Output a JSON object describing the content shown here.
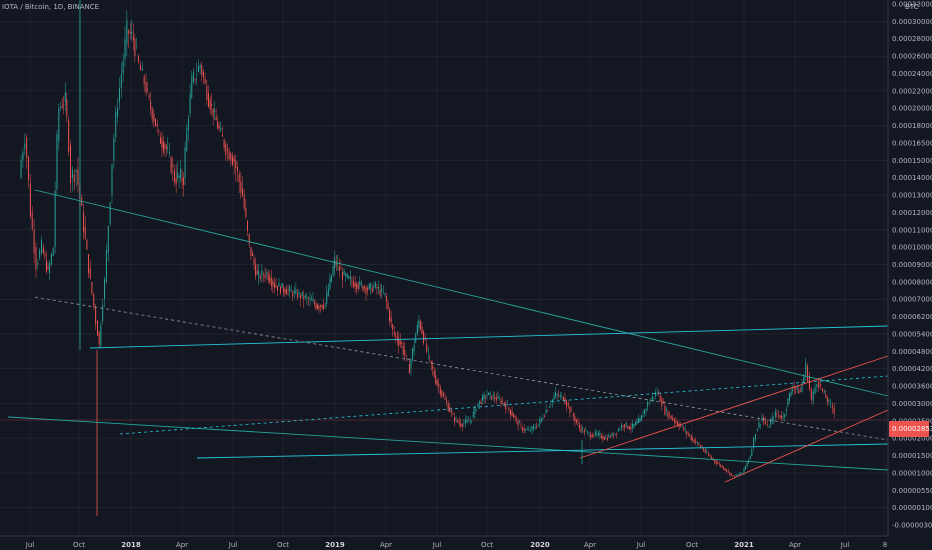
{
  "chart_data": {
    "type": "candlestick",
    "title": "IOTA / Bitcoin, 1D, BINANCE",
    "currency": "BTC",
    "last_price": "0.00002853",
    "y_axis_ticks": [
      "0.00032000",
      "0.00030000",
      "0.00028000",
      "0.00026000",
      "0.00024000",
      "0.00022000",
      "0.00020000",
      "0.00018000",
      "0.00016500",
      "0.00015000",
      "0.00014000",
      "0.00013000",
      "0.00012000",
      "0.00011000",
      "0.00010000",
      "0.00009000",
      "0.00008000",
      "0.00007000",
      "0.00006200",
      "0.00005400",
      "0.00004800",
      "0.00004200",
      "0.00003600",
      "0.00003000",
      "0.00002500",
      "0.00002000",
      "0.00001500",
      "0.00001000",
      "0.00000550",
      "0.00000100",
      "-0.00000300"
    ],
    "x_axis_ticks": [
      "Jul",
      "Oct",
      "2018",
      "Apr",
      "Jul",
      "Oct",
      "2019",
      "Apr",
      "Jul",
      "Oct",
      "2020",
      "Apr",
      "Jul",
      "Oct",
      "2021",
      "Apr",
      "Jul",
      "8"
    ],
    "price_series": [
      [
        "2017-06-15",
        0.00014
      ],
      [
        "2017-06-25",
        0.00017
      ],
      [
        "2017-07-05",
        0.00012
      ],
      [
        "2017-07-15",
        9e-05
      ],
      [
        "2017-07-25",
        0.0001
      ],
      [
        "2017-08-05",
        8.5e-05
      ],
      [
        "2017-08-15",
        0.0001
      ],
      [
        "2017-08-25",
        0.0002
      ],
      [
        "2017-09-05",
        0.00021
      ],
      [
        "2017-09-15",
        0.00014
      ],
      [
        "2017-09-25",
        0.000145
      ],
      [
        "2017-10-05",
        0.00012
      ],
      [
        "2017-10-20",
        8e-05
      ],
      [
        "2017-10-30",
        6e-05
      ],
      [
        "2017-11-05",
        5e-05
      ],
      [
        "2017-11-15",
        8e-05
      ],
      [
        "2017-11-25",
        0.00013
      ],
      [
        "2017-12-05",
        0.00019
      ],
      [
        "2017-12-15",
        0.00024
      ],
      [
        "2017-12-25",
        0.00029
      ],
      [
        "2018-01-05",
        0.00028
      ],
      [
        "2018-01-15",
        0.00025
      ],
      [
        "2018-01-25",
        0.00023
      ],
      [
        "2018-02-05",
        0.0002
      ],
      [
        "2018-02-20",
        0.00017
      ],
      [
        "2018-03-05",
        0.00016
      ],
      [
        "2018-03-20",
        0.00014
      ],
      [
        "2018-04-05",
        0.00014
      ],
      [
        "2018-04-20",
        0.00023
      ],
      [
        "2018-05-05",
        0.00025
      ],
      [
        "2018-05-20",
        0.00021
      ],
      [
        "2018-06-05",
        0.00018
      ],
      [
        "2018-06-20",
        0.00016
      ],
      [
        "2018-07-05",
        0.00015
      ],
      [
        "2018-07-20",
        0.00013
      ],
      [
        "2018-08-01",
        0.0001
      ],
      [
        "2018-08-15",
        8.3e-05
      ],
      [
        "2018-09-01",
        8.5e-05
      ],
      [
        "2018-09-15",
        7.8e-05
      ],
      [
        "2018-10-01",
        7.6e-05
      ],
      [
        "2018-10-15",
        7.4e-05
      ],
      [
        "2018-11-01",
        7.2e-05
      ],
      [
        "2018-11-15",
        7e-05
      ],
      [
        "2018-12-01",
        6.7e-05
      ],
      [
        "2018-12-15",
        6.8e-05
      ],
      [
        "2019-01-01",
        9.2e-05
      ],
      [
        "2019-01-15",
        8.4e-05
      ],
      [
        "2019-02-01",
        8e-05
      ],
      [
        "2019-02-15",
        7.8e-05
      ],
      [
        "2019-03-01",
        7.6e-05
      ],
      [
        "2019-03-15",
        7.7e-05
      ],
      [
        "2019-04-01",
        7.2e-05
      ],
      [
        "2019-04-15",
        5.5e-05
      ],
      [
        "2019-05-01",
        5e-05
      ],
      [
        "2019-05-15",
        4.2e-05
      ],
      [
        "2019-06-01",
        6e-05
      ],
      [
        "2019-06-15",
        4.8e-05
      ],
      [
        "2019-07-01",
        3.8e-05
      ],
      [
        "2019-07-15",
        3.2e-05
      ],
      [
        "2019-08-01",
        2.6e-05
      ],
      [
        "2019-08-15",
        2.4e-05
      ],
      [
        "2019-09-01",
        2.5e-05
      ],
      [
        "2019-09-15",
        3e-05
      ],
      [
        "2019-10-01",
        3.3e-05
      ],
      [
        "2019-10-15",
        3.2e-05
      ],
      [
        "2019-11-01",
        3e-05
      ],
      [
        "2019-11-15",
        2.7e-05
      ],
      [
        "2019-12-01",
        2.3e-05
      ],
      [
        "2019-12-15",
        2.2e-05
      ],
      [
        "2020-01-01",
        2.4e-05
      ],
      [
        "2020-01-15",
        2.8e-05
      ],
      [
        "2020-02-01",
        3.3e-05
      ],
      [
        "2020-02-15",
        3.2e-05
      ],
      [
        "2020-03-01",
        2.7e-05
      ],
      [
        "2020-03-15",
        2.3e-05
      ],
      [
        "2020-04-01",
        2.1e-05
      ],
      [
        "2020-04-15",
        2.1e-05
      ],
      [
        "2020-05-01",
        2e-05
      ],
      [
        "2020-05-15",
        2.1e-05
      ],
      [
        "2020-06-01",
        2.4e-05
      ],
      [
        "2020-06-15",
        2.3e-05
      ],
      [
        "2020-07-01",
        2.5e-05
      ],
      [
        "2020-07-15",
        3e-05
      ],
      [
        "2020-08-01",
        3.4e-05
      ],
      [
        "2020-08-15",
        2.8e-05
      ],
      [
        "2020-09-01",
        2.5e-05
      ],
      [
        "2020-09-15",
        2.3e-05
      ],
      [
        "2020-10-01",
        2e-05
      ],
      [
        "2020-10-15",
        1.8e-05
      ],
      [
        "2020-11-01",
        1.5e-05
      ],
      [
        "2020-11-15",
        1.3e-05
      ],
      [
        "2020-12-01",
        1.1e-05
      ],
      [
        "2020-12-15",
        9e-06
      ],
      [
        "2021-01-01",
        1e-05
      ],
      [
        "2021-01-15",
        1.5e-05
      ],
      [
        "2021-01-25",
        2.2e-05
      ],
      [
        "2021-02-05",
        2.6e-05
      ],
      [
        "2021-02-15",
        2.3e-05
      ],
      [
        "2021-03-01",
        2.7e-05
      ],
      [
        "2021-03-15",
        2.6e-05
      ],
      [
        "2021-04-01",
        3.6e-05
      ],
      [
        "2021-04-15",
        3.4e-05
      ],
      [
        "2021-04-25",
        4.3e-05
      ],
      [
        "2021-05-05",
        3.1e-05
      ],
      [
        "2021-05-15",
        3.8e-05
      ],
      [
        "2021-05-25",
        3.4e-05
      ],
      [
        "2021-06-05",
        3e-05
      ],
      [
        "2021-06-15",
        2.8e-05
      ]
    ],
    "colors": {
      "up": "#26a69a",
      "down": "#ef5350",
      "background": "#131722",
      "grid": "#2a2e39",
      "price_tag": "#ef5350"
    }
  }
}
